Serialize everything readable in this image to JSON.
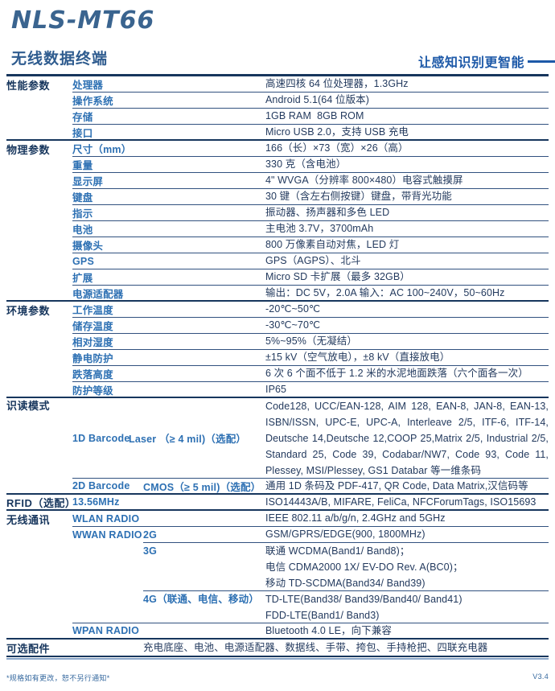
{
  "header": {
    "model": "NLS-MT66",
    "subtitle": "无线数据终端",
    "slogan": "让感知识别更智能"
  },
  "colors": {
    "navy": "#17365d",
    "attr_blue": "#2d70b3",
    "slogan_blue": "#1d59a8",
    "title_steel_blue": "#3a648f",
    "value_navy": "#233a5e"
  },
  "spec": {
    "performance": {
      "label": "性能参数",
      "rows": [
        {
          "name": "处理器",
          "value": "高速四核 64 位处理器，1.3GHz"
        },
        {
          "name": "操作系统",
          "value": "Android 5.1(64 位版本)"
        },
        {
          "name": "存储",
          "value": "1GB RAM  8GB ROM"
        },
        {
          "name": "接口",
          "value": "Micro USB 2.0，支持 USB 充电"
        }
      ]
    },
    "physical": {
      "label": "物理参数",
      "rows": [
        {
          "name": "尺寸（mm）",
          "value": "166（长）×73（宽）×26（高）"
        },
        {
          "name": "重量",
          "value": "330 克（含电池）"
        },
        {
          "name": "显示屏",
          "value": "4\" WVGA（分辨率 800×480）电容式触摸屏"
        },
        {
          "name": "键盘",
          "value": "30 键（含左右侧按键）键盘，带背光功能"
        },
        {
          "name": "指示",
          "value": "振动器、扬声器和多色 LED"
        },
        {
          "name": "电池",
          "value": "主电池 3.7V，3700mAh"
        },
        {
          "name": "摄像头",
          "value": "800 万像素自动对焦，LED 灯"
        },
        {
          "name": "GPS",
          "value": "GPS（AGPS）、北斗"
        },
        {
          "name": "扩展",
          "value": "Micro SD 卡扩展（最多 32GB）"
        },
        {
          "name": "电源适配器",
          "value": "输出：DC 5V，2.0A 输入：AC 100~240V，50~60Hz"
        }
      ]
    },
    "environment": {
      "label": "环境参数",
      "rows": [
        {
          "name": "工作温度",
          "value": "-20℃~50℃"
        },
        {
          "name": "储存温度",
          "value": "-30℃~70℃"
        },
        {
          "name": "相对湿度",
          "value": "5%~95%（无凝结）"
        },
        {
          "name": "静电防护",
          "value": "±15 kV（空气放电），±8 kV（直接放电）"
        },
        {
          "name": "跌落高度",
          "value": "6 次 6 个面不低于 1.2 米的水泥地面跌落（六个面各一次）"
        },
        {
          "name": "防护等级",
          "value": "IP65"
        }
      ]
    },
    "scanning": {
      "label": "识读模式",
      "d1": {
        "type": "1D Barcode",
        "engine": "Laser （≥ 4 mil)（选配）",
        "value": "Code128, UCC/EAN-128, AIM 128, EAN-8, JAN-8, EAN-13, ISBN/ISSN, UPC-E, UPC-A, Interleave 2/5, ITF-6, ITF-14, Deutsche 14,Deutsche 12,COOP 25,Matrix 2/5, Industrial 2/5, Standard 25, Code 39, Codabar/NW7, Code 93, Code 11, Plessey, MSI/Plessey, GS1 Databar 等一维条码"
      },
      "d2": {
        "type": "2D Barcode",
        "engine": "CMOS（≥ 5 mil)（选配）",
        "value": "通用 1D 条码及 PDF-417, QR Code, Data Matrix,汉信码等"
      }
    },
    "rfid": {
      "label": "RFID（选配）",
      "freq": "13.56MHz",
      "value": "ISO14443A/B, MIFARE, FeliCa, NFCForumTags, ISO15693"
    },
    "wireless": {
      "label": "无线通讯",
      "wlan": {
        "name": "WLAN RADIO",
        "value": "IEEE 802.11 a/b/g/n, 2.4GHz and 5GHz"
      },
      "wwan_label": "WWAN RADIO",
      "g2": {
        "name": "2G",
        "value": "GSM/GPRS/EDGE(900, 1800MHz)"
      },
      "g3": {
        "name": "3G",
        "lines": [
          "联通 WCDMA(Band1/ Band8)；",
          "电信 CDMA2000 1X/ EV-DO Rev. A(BC0)；",
          "移动 TD-SCDMA(Band34/ Band39)"
        ]
      },
      "g4": {
        "name": "4G（联通、电信、移动）",
        "lines": [
          "TD-LTE(Band38/ Band39/Band40/ Band41)",
          "FDD-LTE(Band1/ Band3)"
        ]
      },
      "wpan": {
        "name": "WPAN RADIO",
        "value": "Bluetooth 4.0 LE，向下兼容"
      }
    },
    "accessories": {
      "label": "可选配件",
      "value": "充电底座、电池、电源适配器、数据线、手带、挎包、手持枪把、四联充电器"
    }
  },
  "footer": {
    "note": "*规格如有更改，恕不另行通知*",
    "version": "V3.4"
  }
}
